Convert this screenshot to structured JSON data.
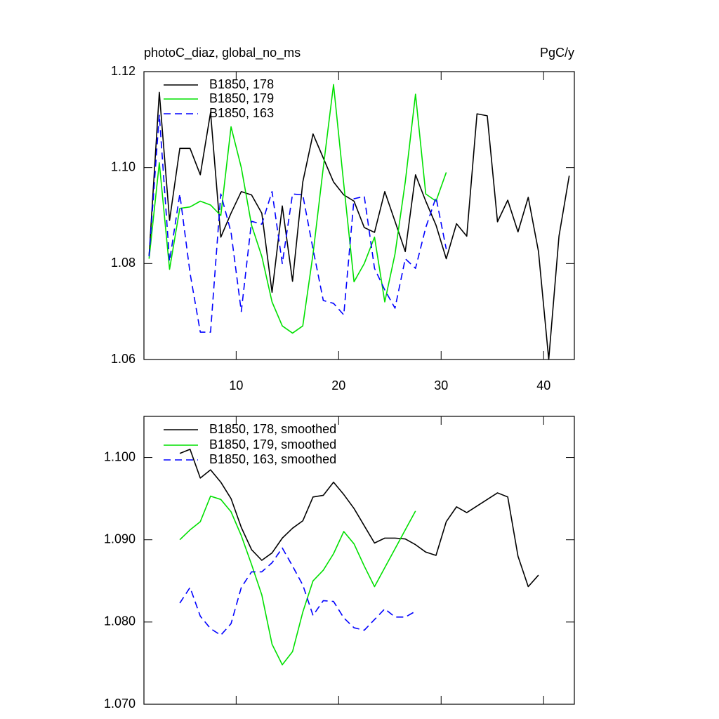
{
  "chart_data": [
    {
      "type": "line",
      "title": "photoC_diaz, global_no_ms",
      "title_right": "PgC/y",
      "xlim": [
        1,
        43
      ],
      "ylim": [
        1.06,
        1.12
      ],
      "xticks": [
        10,
        20,
        30,
        40
      ],
      "yticks": [
        1.06,
        1.08,
        {
          "value": 1.1,
          "label": "1.10"
        },
        1.12
      ],
      "xtick_labels": true,
      "legend": "upper left",
      "series": [
        {
          "name": "B1850, 178",
          "color": "#000000",
          "dash": false,
          "x": [
            1.5,
            2.5,
            3.5,
            4.5,
            5.5,
            6.5,
            7.5,
            8.5,
            9.5,
            10.5,
            11.5,
            12.5,
            13.5,
            14.5,
            15.5,
            16.5,
            17.5,
            18.5,
            19.5,
            20.5,
            21.5,
            22.5,
            23.5,
            24.5,
            25.5,
            26.5,
            27.5,
            28.5,
            29.5,
            30.5,
            31.5,
            32.5,
            33.5,
            34.5,
            35.5,
            36.5,
            37.5,
            38.5,
            39.5,
            40.5,
            41.5,
            42.5
          ],
          "values": [
            1.0815,
            1.1157,
            1.089,
            1.104,
            1.104,
            1.0985,
            1.1115,
            1.0855,
            1.0905,
            1.095,
            1.0943,
            1.0905,
            1.074,
            1.092,
            1.0763,
            1.097,
            1.107,
            1.102,
            1.097,
            1.0943,
            1.093,
            1.0875,
            1.0865,
            1.095,
            1.0888,
            1.0825,
            1.0985,
            1.093,
            1.088,
            1.081,
            1.0883,
            1.0857,
            1.1112,
            1.1108,
            1.0887,
            1.0932,
            1.0866,
            1.0938,
            1.0825,
            1.06,
            1.0857,
            1.0983
          ]
        },
        {
          "name": "B1850, 179",
          "color": "#00e000",
          "dash": false,
          "x": [
            1.5,
            2.5,
            3.5,
            4.5,
            5.5,
            6.5,
            7.5,
            8.5,
            9.5,
            10.5,
            11.5,
            12.5,
            13.5,
            14.5,
            15.5,
            16.5,
            17.5,
            18.5,
            19.5,
            20.5,
            21.5,
            22.5,
            23.5,
            24.5,
            25.5,
            26.5,
            27.5,
            28.5,
            29.5,
            30.5
          ],
          "values": [
            1.081,
            1.101,
            1.0788,
            1.0915,
            1.0918,
            1.093,
            1.0922,
            1.09,
            1.1085,
            1.1,
            1.088,
            1.0815,
            1.072,
            1.067,
            1.0655,
            1.067,
            1.082,
            1.1,
            1.1173,
            1.0965,
            1.0762,
            1.08,
            1.0855,
            1.072,
            1.082,
            1.097,
            1.1153,
            1.0945,
            1.093,
            1.099
          ]
        },
        {
          "name": "B1850, 163",
          "color": "#0000ff",
          "dash": true,
          "x": [
            1.5,
            2.5,
            3.5,
            4.5,
            5.5,
            6.5,
            7.5,
            8.5,
            9.5,
            10.5,
            11.5,
            12.5,
            13.5,
            14.5,
            15.5,
            16.5,
            17.5,
            18.5,
            19.5,
            20.5,
            21.5,
            22.5,
            23.5,
            24.5,
            25.5,
            26.5,
            27.5,
            28.5,
            29.5,
            30.5
          ],
          "values": [
            1.0815,
            1.111,
            1.0805,
            1.0945,
            1.078,
            1.0657,
            1.0657,
            1.0945,
            1.0865,
            1.07,
            1.0888,
            1.0882,
            1.095,
            1.08,
            1.0945,
            1.0943,
            1.083,
            1.0723,
            1.0717,
            1.0693,
            1.0935,
            1.094,
            1.079,
            1.0745,
            1.0707,
            1.081,
            1.079,
            1.0875,
            1.0938,
            1.083
          ]
        }
      ]
    },
    {
      "type": "line",
      "xlim": [
        1,
        43
      ],
      "ylim": [
        1.07,
        1.105
      ],
      "xticks": [
        10,
        20,
        30,
        40
      ],
      "yticks": [
        {
          "value": 1.07,
          "label": "1.070"
        },
        {
          "value": 1.08,
          "label": "1.080"
        },
        {
          "value": 1.09,
          "label": "1.090"
        },
        {
          "value": 1.1,
          "label": "1.100"
        }
      ],
      "xtick_labels": false,
      "legend": "upper left",
      "series": [
        {
          "name": "B1850, 178, smoothed",
          "color": "#000000",
          "dash": false,
          "x": [
            4.5,
            5.5,
            6.5,
            7.5,
            8.5,
            9.5,
            10.5,
            11.5,
            12.5,
            13.5,
            14.5,
            15.5,
            16.5,
            17.5,
            18.5,
            19.5,
            20.5,
            21.5,
            22.5,
            23.5,
            24.5,
            25.5,
            26.5,
            27.5,
            28.5,
            29.5,
            30.5,
            31.5,
            32.5,
            33.5,
            34.5,
            35.5,
            36.5,
            37.5,
            38.5,
            39.5
          ],
          "values": [
            1.1005,
            1.101,
            1.0975,
            1.0985,
            1.097,
            1.095,
            1.0915,
            1.0888,
            1.0875,
            1.0884,
            1.0902,
            1.0914,
            1.0923,
            1.0952,
            1.0954,
            1.097,
            1.0955,
            1.0938,
            1.0917,
            1.0896,
            1.0902,
            1.0902,
            1.0901,
            1.0894,
            1.0885,
            1.0881,
            1.0922,
            1.094,
            1.0933,
            1.0941,
            1.0949,
            1.0957,
            1.0952,
            1.088,
            1.0843,
            1.0857
          ]
        },
        {
          "name": "B1850, 179, smoothed",
          "color": "#00e000",
          "dash": false,
          "x": [
            4.5,
            5.5,
            6.5,
            7.5,
            8.5,
            9.5,
            10.5,
            11.5,
            12.5,
            13.5,
            14.5,
            15.5,
            16.5,
            17.5,
            18.5,
            19.5,
            20.5,
            21.5,
            22.5,
            23.5,
            24.5,
            25.5,
            26.5,
            27.5
          ],
          "values": [
            1.09,
            1.0912,
            1.0922,
            1.0953,
            1.0949,
            1.0934,
            1.0905,
            1.087,
            1.0833,
            1.0773,
            1.0748,
            1.0764,
            1.0812,
            1.085,
            1.0863,
            1.0883,
            1.091,
            1.0895,
            1.0868,
            1.0843,
            1.0866,
            1.0889,
            1.0912,
            1.0935
          ]
        },
        {
          "name": "B1850, 163, smoothed",
          "color": "#0000ff",
          "dash": true,
          "x": [
            4.5,
            5.5,
            6.5,
            7.5,
            8.5,
            9.5,
            10.5,
            11.5,
            12.5,
            13.5,
            14.5,
            15.5,
            16.5,
            17.5,
            18.5,
            19.5,
            20.5,
            21.5,
            22.5,
            23.5,
            24.5,
            25.5,
            26.5,
            27.5
          ],
          "values": [
            1.0823,
            1.0842,
            1.0807,
            1.0792,
            1.0784,
            1.0798,
            1.0842,
            1.0861,
            1.0861,
            1.0872,
            1.089,
            1.0868,
            1.0845,
            1.0808,
            1.0826,
            1.0825,
            1.0805,
            1.0793,
            1.079,
            1.0803,
            1.0816,
            1.0806,
            1.0806,
            1.0813
          ]
        }
      ]
    }
  ]
}
